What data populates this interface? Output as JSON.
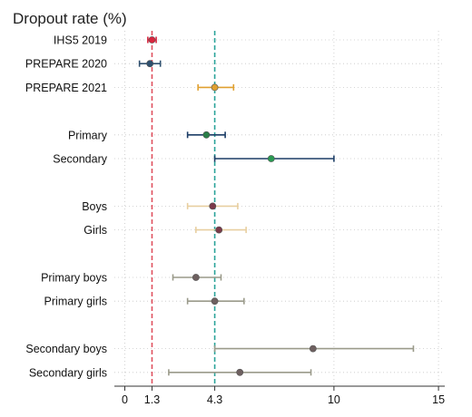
{
  "chart_data": {
    "type": "dot-errorbar",
    "title": "Dropout rate (%)",
    "xlabel": "",
    "ylabel": "",
    "xlim": [
      -0.5,
      15.3
    ],
    "xticks": [
      0,
      1.3,
      4.3,
      10,
      15
    ],
    "xtick_labels": [
      "0",
      "1.3",
      "4.3",
      "10",
      "15"
    ],
    "grid": true,
    "reference_lines": [
      {
        "value": 1.3,
        "color": "#e0505e",
        "style": "dashed"
      },
      {
        "value": 4.3,
        "color": "#2aa39a",
        "style": "dashed"
      }
    ],
    "rows": [
      {
        "label": "IHS5 2019",
        "estimate": 1.3,
        "low": 1.1,
        "high": 1.5,
        "point_color": "#d9263f",
        "bar_color": "#d9263f"
      },
      {
        "label": "PREPARE 2020",
        "estimate": 1.2,
        "low": 0.7,
        "high": 1.7,
        "point_color": "#2e4f6e",
        "bar_color": "#2e4f6e"
      },
      {
        "label": "PREPARE 2021",
        "estimate": 4.3,
        "low": 3.5,
        "high": 5.2,
        "point_color": "#e0a030",
        "bar_color": "#e0a030"
      },
      {
        "label": "Primary",
        "estimate": 3.9,
        "low": 3.0,
        "high": 4.8,
        "point_color": "#2a7e48",
        "bar_color": "#1c3d66"
      },
      {
        "label": "Secondary",
        "estimate": 7.0,
        "low": 4.3,
        "high": 10.0,
        "point_color": "#2a9a52",
        "bar_color": "#1c3d66"
      },
      {
        "label": "Boys",
        "estimate": 4.2,
        "low": 3.0,
        "high": 5.4,
        "point_color": "#7a3a4a",
        "bar_color": "#e8cfa0"
      },
      {
        "label": "Girls",
        "estimate": 4.5,
        "low": 3.4,
        "high": 5.8,
        "point_color": "#7a3a4a",
        "bar_color": "#e8cfa0"
      },
      {
        "label": "Primary boys",
        "estimate": 3.4,
        "low": 2.3,
        "high": 4.6,
        "point_color": "#6e6060",
        "bar_color": "#9a9a8a"
      },
      {
        "label": "Primary girls",
        "estimate": 4.3,
        "low": 3.0,
        "high": 5.7,
        "point_color": "#6e6060",
        "bar_color": "#9a9a8a"
      },
      {
        "label": "Secondary boys",
        "estimate": 9.0,
        "low": 4.3,
        "high": 13.8,
        "point_color": "#6e6060",
        "bar_color": "#9a9a8a"
      },
      {
        "label": "Secondary girls",
        "estimate": 5.5,
        "low": 2.1,
        "high": 8.9,
        "point_color": "#6e6060",
        "bar_color": "#9a9a8a"
      }
    ]
  }
}
